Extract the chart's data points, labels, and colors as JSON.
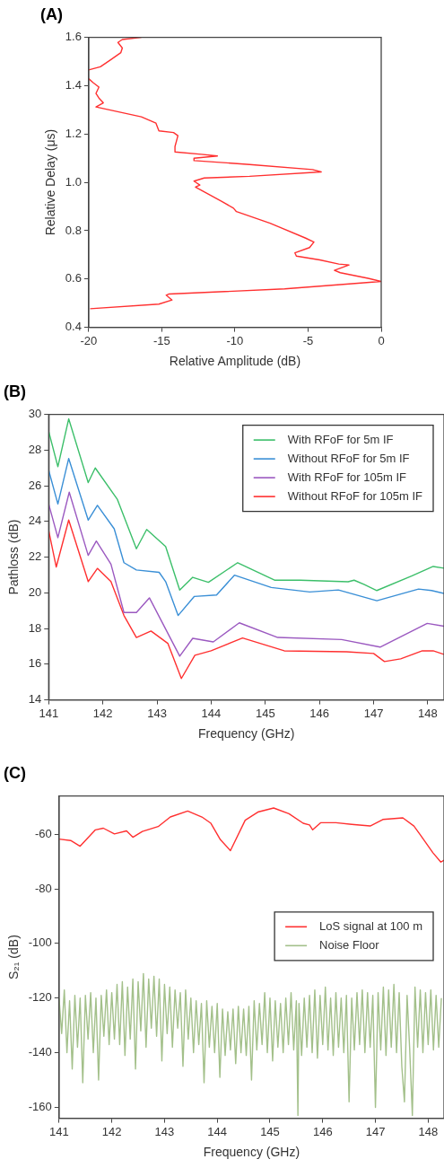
{
  "chart_data": [
    {
      "type": "line",
      "title": "(A)",
      "xlabel": "Relative Amplitude (dB)",
      "ylabel": "Relative Delay (μs)",
      "xlim": [
        -20,
        0
      ],
      "xticks": [
        -20,
        -15,
        -10,
        -5,
        0
      ],
      "ylim": [
        0.4,
        1.6
      ],
      "yticks": [
        0.4,
        0.6,
        0.8,
        {
          "value": 1,
          "label": "1.0"
        },
        1.2,
        1.4,
        1.6
      ],
      "grid": false,
      "legend": false,
      "series": [
        {
          "color": "#ff3030",
          "x": [
            -19.9,
            -15.2,
            -14.3,
            -14.7,
            -14.5,
            -6.6,
            0,
            -0.9,
            -2.8,
            -3.2,
            -2.2,
            -2.9,
            -4.2,
            -5.8,
            -5.9,
            -4.9,
            -4.6,
            -5.2,
            -7.6,
            -9.9,
            -10.1,
            -10.9,
            -12.7,
            -12.4,
            -12.8,
            -12.1,
            -9.0,
            -4.1,
            -4.7,
            -9.0,
            -12.8,
            -12.8,
            -11.2,
            -12.3,
            -14.1,
            -14.1,
            -13.9,
            -14.2,
            -15.2,
            -15.4,
            -16.4,
            -19.5,
            -19.0,
            -19.3,
            -19.5,
            -19.3,
            -19.7,
            -20,
            null,
            -20,
            -19.2,
            -18.5,
            -17.8,
            -17.7,
            -18.0,
            -17.7,
            -16.4
          ],
          "values": [
            0.477,
            0.496,
            0.513,
            0.533,
            0.538,
            0.559,
            0.59,
            0.603,
            0.626,
            0.636,
            0.658,
            0.662,
            0.679,
            0.695,
            0.708,
            0.73,
            0.753,
            0.77,
            0.831,
            0.879,
            0.893,
            0.921,
            0.98,
            0.989,
            1.005,
            1.018,
            1.025,
            1.043,
            1.053,
            1.074,
            1.09,
            1.1,
            1.109,
            1.116,
            1.126,
            1.148,
            1.193,
            1.206,
            1.213,
            1.245,
            1.271,
            1.312,
            1.329,
            1.349,
            1.368,
            1.394,
            1.413,
            1.429,
            null,
            1.465,
            1.478,
            1.507,
            1.537,
            1.556,
            1.579,
            1.591,
            1.6
          ]
        }
      ]
    },
    {
      "type": "line",
      "title": "(B)",
      "xlabel": "Frequency (GHz)",
      "ylabel": "Pathloss (dB)",
      "xlim": [
        141,
        148.3
      ],
      "xticks": [
        141,
        142,
        143,
        144,
        145,
        146,
        147,
        148
      ],
      "ylim": [
        14,
        30
      ],
      "yticks": [
        14,
        16,
        18,
        20,
        22,
        24,
        26,
        28,
        30
      ],
      "grid": false,
      "legend": "top right",
      "series": [
        {
          "name": "With RFoF for 5m IF",
          "color": "#3cbf6a",
          "x": [
            141.0,
            141.17,
            141.37,
            141.73,
            141.86,
            142.27,
            142.62,
            142.81,
            143.16,
            143.42,
            143.66,
            143.95,
            144.49,
            145.17,
            145.64,
            146.53,
            146.64,
            146.83,
            147.06,
            147.71,
            148.1,
            148.3
          ],
          "values": [
            29.05,
            27.07,
            29.75,
            26.18,
            27.0,
            25.23,
            22.47,
            23.55,
            22.6,
            20.16,
            20.87,
            20.59,
            21.69,
            20.71,
            20.71,
            20.62,
            20.71,
            20.46,
            20.13,
            20.95,
            21.48,
            21.38
          ]
        },
        {
          "name": "Without RFoF for 5m IF",
          "color": "#3a8fd6",
          "x": [
            141.0,
            141.17,
            141.37,
            141.73,
            141.9,
            142.21,
            142.39,
            142.62,
            143.04,
            143.16,
            143.39,
            143.69,
            144.1,
            144.43,
            145.11,
            145.82,
            146.35,
            147.06,
            147.83,
            148.07,
            148.3
          ],
          "values": [
            26.87,
            24.98,
            27.53,
            24.08,
            24.9,
            23.59,
            21.69,
            21.28,
            21.15,
            20.63,
            18.73,
            19.8,
            19.88,
            20.99,
            20.3,
            20.05,
            20.16,
            19.56,
            20.21,
            20.13,
            19.97
          ]
        },
        {
          "name": "With RFoF for 105m IF",
          "color": "#9b59c0",
          "x": [
            141.0,
            141.17,
            141.38,
            141.73,
            141.88,
            142.15,
            142.39,
            142.62,
            142.86,
            143.42,
            143.66,
            144.04,
            144.52,
            145.23,
            146.41,
            147.12,
            147.99,
            148.3
          ],
          "values": [
            24.98,
            23.09,
            25.64,
            22.1,
            22.9,
            21.61,
            18.9,
            18.9,
            19.72,
            16.45,
            17.45,
            17.25,
            18.32,
            17.5,
            17.38,
            16.96,
            18.29,
            18.13
          ]
        },
        {
          "name": "Without RFoF for 105m IF",
          "color": "#ff3030",
          "x": [
            141.0,
            141.14,
            141.37,
            141.73,
            141.9,
            142.15,
            142.39,
            142.62,
            142.89,
            143.2,
            143.45,
            143.7,
            144.0,
            144.58,
            145.35,
            146.5,
            147.0,
            147.2,
            147.5,
            147.9,
            148.1,
            148.3
          ],
          "values": [
            23.5,
            21.45,
            24.08,
            20.63,
            21.37,
            20.63,
            18.73,
            17.5,
            17.86,
            17.17,
            15.2,
            16.5,
            16.75,
            17.47,
            16.75,
            16.7,
            16.6,
            16.15,
            16.3,
            16.75,
            16.75,
            16.55
          ]
        }
      ]
    },
    {
      "type": "line",
      "title": "(C)",
      "xlabel": "Frequency (GHz)",
      "ylabel": "S₂₁ (dB)",
      "xlim": [
        141,
        148.3
      ],
      "xticks": [
        141,
        142,
        143,
        144,
        145,
        146,
        147,
        148
      ],
      "ylim": [
        -164,
        -46
      ],
      "yticks": [
        -160,
        -140,
        -120,
        -100,
        -80,
        -60
      ],
      "grid": false,
      "legend": "right",
      "series": [
        {
          "name": "LoS signal at 100 m",
          "color": "#ff3030",
          "x": [
            141.0,
            141.22,
            141.4,
            141.69,
            141.84,
            142.05,
            142.28,
            142.4,
            142.58,
            142.88,
            143.11,
            143.44,
            143.71,
            143.88,
            144.06,
            144.25,
            144.53,
            144.77,
            145.07,
            145.36,
            145.63,
            145.75,
            145.81,
            145.96,
            146.25,
            146.55,
            146.9,
            147.14,
            147.52,
            147.73,
            147.85,
            148.09,
            148.24,
            148.3
          ],
          "values": [
            -61.8,
            -62.3,
            -64.4,
            -58.4,
            -57.8,
            -59.9,
            -58.8,
            -61.1,
            -59.0,
            -57.2,
            -53.7,
            -51.5,
            -53.7,
            -56.0,
            -62.0,
            -66.0,
            -54.9,
            -51.9,
            -50.4,
            -52.5,
            -56.0,
            -56.6,
            -58.4,
            -55.8,
            -55.8,
            -56.4,
            -57.0,
            -54.6,
            -54.0,
            -57.0,
            -60.2,
            -66.8,
            -70.2,
            -69.5
          ]
        },
        {
          "name": "Noise Floor",
          "color": "#a3c08a",
          "x": [
            141.0,
            141.05,
            141.1,
            141.15,
            141.2,
            141.25,
            141.3,
            141.35,
            141.4,
            141.45,
            141.5,
            141.55,
            141.6,
            141.65,
            141.7,
            141.75,
            141.8,
            141.85,
            141.9,
            141.95,
            142.0,
            142.05,
            142.1,
            142.15,
            142.2,
            142.25,
            142.3,
            142.35,
            142.4,
            142.45,
            142.5,
            142.55,
            142.6,
            142.65,
            142.7,
            142.75,
            142.8,
            142.85,
            142.9,
            142.95,
            143.0,
            143.05,
            143.1,
            143.15,
            143.2,
            143.25,
            143.3,
            143.35,
            143.4,
            143.45,
            143.5,
            143.55,
            143.6,
            143.65,
            143.7,
            143.75,
            143.8,
            143.85,
            143.9,
            143.95,
            144.0,
            144.05,
            144.1,
            144.15,
            144.2,
            144.25,
            144.3,
            144.35,
            144.4,
            144.45,
            144.5,
            144.55,
            144.6,
            144.65,
            144.7,
            144.75,
            144.8,
            144.85,
            144.9,
            144.95,
            145.0,
            145.05,
            145.1,
            145.15,
            145.2,
            145.25,
            145.3,
            145.35,
            145.4,
            145.45,
            145.5,
            145.53,
            145.55,
            145.6,
            145.65,
            145.7,
            145.75,
            145.8,
            145.85,
            145.9,
            145.95,
            146.0,
            146.05,
            146.1,
            146.15,
            146.2,
            146.25,
            146.3,
            146.35,
            146.4,
            146.45,
            146.5,
            146.55,
            146.6,
            146.65,
            146.7,
            146.75,
            146.8,
            146.85,
            146.9,
            146.95,
            147.0,
            147.05,
            147.1,
            147.15,
            147.2,
            147.25,
            147.3,
            147.35,
            147.4,
            147.45,
            147.5,
            147.55,
            147.6,
            147.65,
            147.7,
            147.75,
            147.8,
            147.85,
            147.9,
            147.95,
            148.0,
            148.05,
            148.1,
            148.15,
            148.2,
            148.25
          ],
          "values": [
            -120,
            -133,
            -117,
            -140,
            -121,
            -146,
            -119,
            -138,
            -120,
            -151,
            -119,
            -135,
            -118,
            -140,
            -120,
            -150,
            -119,
            -134,
            -117,
            -137,
            -118,
            -135,
            -115,
            -137,
            -114,
            -141,
            -116,
            -135,
            -113,
            -146,
            -114,
            -132,
            -111,
            -138,
            -113,
            -131,
            -112,
            -134,
            -113,
            -143,
            -115,
            -133,
            -116,
            -138,
            -117,
            -131,
            -118,
            -145,
            -117,
            -135,
            -120,
            -140,
            -121,
            -137,
            -122,
            -151,
            -121,
            -138,
            -123,
            -140,
            -122,
            -149,
            -124,
            -141,
            -125,
            -139,
            -124,
            -144,
            -123,
            -140,
            -124,
            -141,
            -123,
            -150,
            -121,
            -139,
            -122,
            -137,
            -118,
            -140,
            -120,
            -143,
            -121,
            -138,
            -122,
            -140,
            -120,
            -137,
            -118,
            -139,
            -121,
            -163,
            -122,
            -141,
            -120,
            -138,
            -119,
            -140,
            -117,
            -142,
            -119,
            -137,
            -116,
            -139,
            -120,
            -141,
            -118,
            -138,
            -120,
            -140,
            -119,
            -158,
            -120,
            -139,
            -118,
            -137,
            -117,
            -140,
            -118,
            -138,
            -119,
            -160,
            -118,
            -139,
            -116,
            -141,
            -117,
            -138,
            -115,
            -140,
            -118,
            -145,
            -158,
            -119,
            -139,
            -163,
            -116,
            -138,
            -117,
            -140,
            -118,
            -137,
            -117,
            -139,
            -119,
            -138,
            -120
          ]
        }
      ]
    }
  ]
}
